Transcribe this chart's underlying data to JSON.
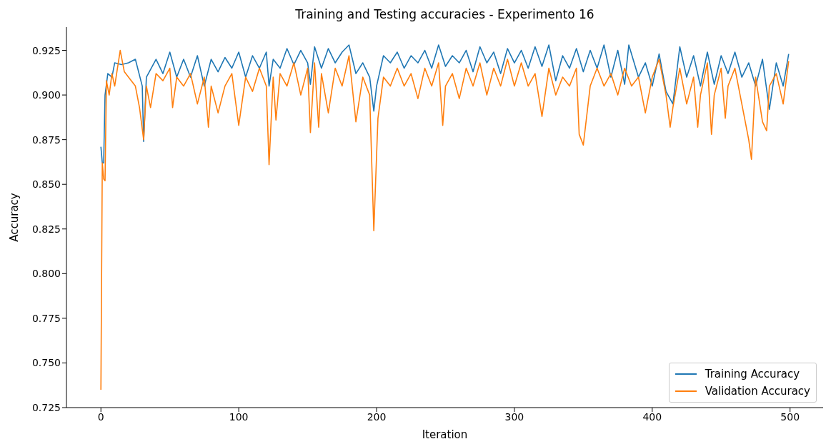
{
  "chart_data": {
    "type": "line",
    "title": "Training and Testing accuracies - Experimento 16",
    "xlabel": "Iteration",
    "ylabel": "Accuracy",
    "legend": "bottom right",
    "grid": false,
    "xlim": [
      -25,
      524
    ],
    "xticks": [
      0,
      100,
      200,
      300,
      400,
      500
    ],
    "ylim": [
      0.725,
      0.938
    ],
    "yticks": [
      {
        "value": 0.725,
        "label": "0.725"
      },
      {
        "value": 0.75,
        "label": "0.750"
      },
      {
        "value": 0.775,
        "label": "0.775"
      },
      {
        "value": 0.8,
        "label": "0.800"
      },
      {
        "value": 0.825,
        "label": "0.825"
      },
      {
        "value": 0.85,
        "label": "0.850"
      },
      {
        "value": 0.875,
        "label": "0.875"
      },
      {
        "value": 0.9,
        "label": "0.900"
      },
      {
        "value": 0.925,
        "label": "0.925"
      }
    ],
    "series": [
      {
        "name": "Training Accuracy",
        "color": "#1f77b4",
        "x": [
          0,
          1,
          2,
          3,
          5,
          8,
          10,
          15,
          20,
          25,
          30,
          31,
          33,
          40,
          45,
          50,
          55,
          60,
          65,
          70,
          75,
          80,
          85,
          90,
          95,
          100,
          105,
          110,
          115,
          120,
          122,
          125,
          130,
          135,
          140,
          145,
          150,
          152,
          155,
          160,
          165,
          170,
          175,
          180,
          185,
          190,
          195,
          198,
          200,
          205,
          210,
          215,
          220,
          225,
          230,
          235,
          240,
          245,
          250,
          255,
          260,
          265,
          270,
          275,
          280,
          285,
          290,
          295,
          300,
          305,
          310,
          315,
          320,
          325,
          330,
          335,
          340,
          345,
          350,
          355,
          360,
          365,
          370,
          375,
          380,
          383,
          390,
          395,
          400,
          405,
          410,
          415,
          420,
          425,
          430,
          435,
          440,
          445,
          450,
          455,
          460,
          465,
          470,
          475,
          480,
          485,
          490,
          495,
          499
        ],
        "values": [
          0.871,
          0.862,
          0.862,
          0.9,
          0.912,
          0.91,
          0.918,
          0.917,
          0.918,
          0.92,
          0.905,
          0.874,
          0.91,
          0.92,
          0.912,
          0.924,
          0.91,
          0.92,
          0.91,
          0.922,
          0.905,
          0.92,
          0.913,
          0.921,
          0.915,
          0.924,
          0.91,
          0.922,
          0.915,
          0.924,
          0.905,
          0.92,
          0.915,
          0.926,
          0.917,
          0.925,
          0.918,
          0.906,
          0.927,
          0.915,
          0.926,
          0.918,
          0.924,
          0.928,
          0.912,
          0.918,
          0.91,
          0.891,
          0.905,
          0.922,
          0.918,
          0.924,
          0.915,
          0.922,
          0.918,
          0.925,
          0.915,
          0.928,
          0.916,
          0.922,
          0.918,
          0.925,
          0.913,
          0.927,
          0.918,
          0.924,
          0.912,
          0.926,
          0.918,
          0.925,
          0.915,
          0.927,
          0.916,
          0.928,
          0.908,
          0.922,
          0.915,
          0.926,
          0.913,
          0.925,
          0.915,
          0.928,
          0.91,
          0.925,
          0.906,
          0.928,
          0.91,
          0.918,
          0.905,
          0.923,
          0.902,
          0.895,
          0.927,
          0.91,
          0.922,
          0.905,
          0.924,
          0.906,
          0.922,
          0.912,
          0.924,
          0.91,
          0.918,
          0.905,
          0.92,
          0.892,
          0.918,
          0.905,
          0.923
        ]
      },
      {
        "name": "Validation Accuracy",
        "color": "#ff7f0e",
        "x": [
          0,
          1,
          2,
          3,
          4,
          6,
          8,
          10,
          12,
          14,
          17,
          20,
          25,
          28,
          31,
          33,
          36,
          40,
          45,
          50,
          52,
          55,
          60,
          65,
          70,
          75,
          78,
          80,
          85,
          90,
          95,
          100,
          105,
          110,
          115,
          120,
          122,
          125,
          127,
          130,
          135,
          140,
          145,
          150,
          152,
          155,
          158,
          160,
          165,
          170,
          175,
          180,
          185,
          190,
          195,
          198,
          201,
          205,
          210,
          215,
          220,
          225,
          230,
          235,
          240,
          245,
          248,
          250,
          255,
          260,
          265,
          270,
          275,
          280,
          285,
          290,
          295,
          300,
          305,
          310,
          315,
          320,
          325,
          330,
          335,
          340,
          345,
          347,
          350,
          355,
          360,
          365,
          370,
          375,
          380,
          385,
          390,
          395,
          400,
          405,
          410,
          413,
          415,
          420,
          425,
          430,
          433,
          435,
          440,
          443,
          445,
          450,
          453,
          455,
          460,
          465,
          470,
          472,
          475,
          480,
          483,
          485,
          490,
          495,
          499
        ],
        "values": [
          0.735,
          0.862,
          0.853,
          0.852,
          0.908,
          0.9,
          0.912,
          0.905,
          0.915,
          0.925,
          0.913,
          0.91,
          0.905,
          0.893,
          0.875,
          0.905,
          0.893,
          0.912,
          0.908,
          0.915,
          0.893,
          0.91,
          0.905,
          0.912,
          0.895,
          0.91,
          0.882,
          0.905,
          0.89,
          0.905,
          0.912,
          0.883,
          0.91,
          0.902,
          0.915,
          0.905,
          0.861,
          0.91,
          0.886,
          0.912,
          0.905,
          0.918,
          0.9,
          0.915,
          0.879,
          0.918,
          0.882,
          0.912,
          0.89,
          0.915,
          0.905,
          0.922,
          0.885,
          0.91,
          0.9,
          0.824,
          0.887,
          0.91,
          0.905,
          0.915,
          0.905,
          0.912,
          0.898,
          0.915,
          0.905,
          0.918,
          0.883,
          0.905,
          0.912,
          0.898,
          0.915,
          0.905,
          0.918,
          0.9,
          0.915,
          0.905,
          0.92,
          0.905,
          0.918,
          0.905,
          0.912,
          0.888,
          0.915,
          0.9,
          0.91,
          0.905,
          0.915,
          0.878,
          0.872,
          0.905,
          0.915,
          0.905,
          0.912,
          0.9,
          0.915,
          0.905,
          0.91,
          0.89,
          0.91,
          0.92,
          0.9,
          0.882,
          0.893,
          0.915,
          0.895,
          0.91,
          0.882,
          0.9,
          0.918,
          0.878,
          0.9,
          0.915,
          0.887,
          0.905,
          0.915,
          0.895,
          0.875,
          0.864,
          0.91,
          0.885,
          0.88,
          0.905,
          0.912,
          0.895,
          0.919
        ]
      }
    ]
  }
}
